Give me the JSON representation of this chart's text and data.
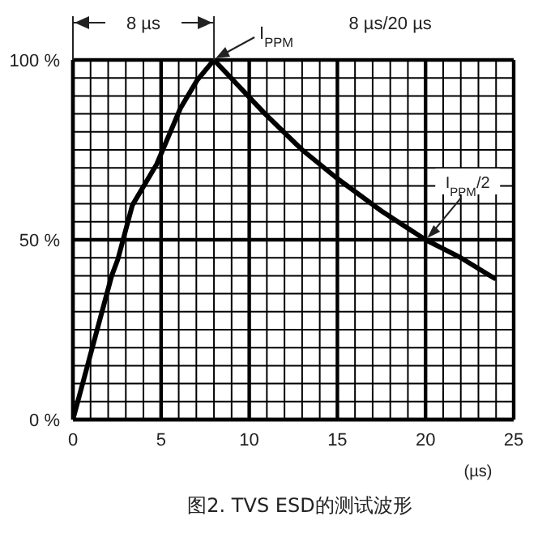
{
  "chart_data": {
    "type": "line",
    "xlabel": "(µs)",
    "x": [
      0,
      2.2,
      2.55,
      3.37,
      4.75,
      6.1,
      7.05,
      8,
      10.9,
      13,
      15,
      17.5,
      20,
      22,
      23.9
    ],
    "series": [
      {
        "color": "#000000",
        "values": [
          0,
          40,
          44.6,
          59.6,
          71,
          86.6,
          94.4,
          100,
          85,
          75,
          67,
          58,
          50,
          45,
          39.3
        ]
      }
    ],
    "xlim": [
      0,
      25
    ],
    "xticks": [
      0,
      {
        "value": 1,
        "label": null
      },
      {
        "value": 2,
        "label": null
      },
      {
        "value": 3,
        "label": null
      },
      {
        "value": 4,
        "label": null
      },
      5,
      {
        "value": 6,
        "label": null
      },
      {
        "value": 7,
        "label": null
      },
      {
        "value": 8,
        "label": null
      },
      {
        "value": 9,
        "label": null
      },
      10,
      {
        "value": 11,
        "label": null
      },
      {
        "value": 12,
        "label": null
      },
      {
        "value": 13,
        "label": null
      },
      {
        "value": 14,
        "label": null
      },
      15,
      {
        "value": 16,
        "label": null
      },
      {
        "value": 17,
        "label": null
      },
      {
        "value": 18,
        "label": null
      },
      {
        "value": 19,
        "label": null
      },
      20,
      {
        "value": 21,
        "label": null
      },
      {
        "value": 22,
        "label": null
      },
      {
        "value": 23,
        "label": null
      },
      {
        "value": 24,
        "label": null
      },
      25
    ],
    "ylim": [
      0,
      100
    ],
    "yticks": [
      {
        "value": 0,
        "label": "0 %"
      },
      {
        "value": 5,
        "label": null
      },
      {
        "value": 10,
        "label": null
      },
      {
        "value": 15,
        "label": null
      },
      {
        "value": 20,
        "label": null
      },
      {
        "value": 25,
        "label": null
      },
      {
        "value": 30,
        "label": null
      },
      {
        "value": 35,
        "label": null
      },
      {
        "value": 40,
        "label": null
      },
      {
        "value": 45,
        "label": null
      },
      {
        "value": 50,
        "label": "50 %"
      },
      {
        "value": 55,
        "label": null
      },
      {
        "value": 60,
        "label": null
      },
      {
        "value": 65,
        "label": null
      },
      {
        "value": 70,
        "label": null
      },
      {
        "value": 75,
        "label": null
      },
      {
        "value": 80,
        "label": null
      },
      {
        "value": 85,
        "label": null
      },
      {
        "value": 90,
        "label": null
      },
      {
        "value": 95,
        "label": null
      },
      {
        "value": 100,
        "label": "100 %"
      }
    ],
    "grid": true,
    "marker": "none",
    "line_style": "solid",
    "annotations": [
      "8 µs",
      "8 µs/20 µs",
      {
        "text": "I$_{PPM}$",
        "x": 8,
        "y": 100
      },
      {
        "text": "I$_{PPM}$/2",
        "x": 20,
        "y": 50
      },
      "图2. TVS ESD的测试波形"
    ]
  }
}
